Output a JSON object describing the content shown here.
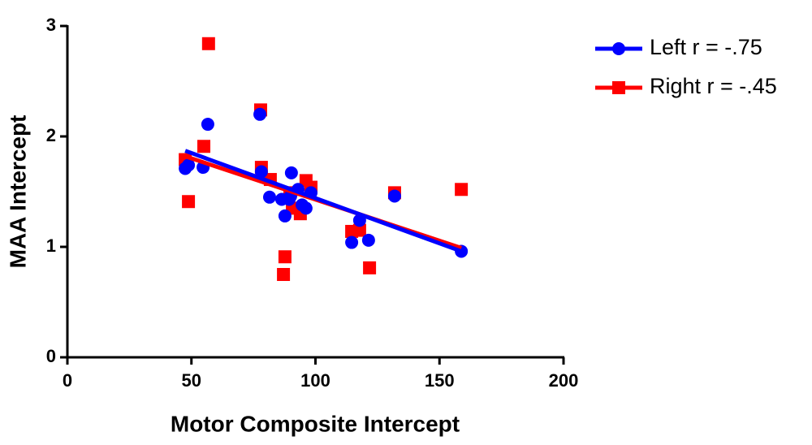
{
  "chart_data": {
    "type": "scatter",
    "x_label": "Motor Composite Intercept",
    "y_label": "MAA Intercept",
    "xlim": [
      0,
      200
    ],
    "xticks": [
      0,
      50,
      100,
      150,
      200
    ],
    "ylim": [
      0,
      3
    ],
    "yticks": [
      0,
      1,
      2,
      3
    ],
    "legend_position": "right",
    "series": [
      {
        "name": "Left r = -.75",
        "color": "#0000ff",
        "marker": "circle",
        "x": [
          47.5,
          48.8,
          54.7,
          56.6,
          77.6,
          78.2,
          81.5,
          86.4,
          87.7,
          89.4,
          90.3,
          90.0,
          93.0,
          94.6,
          96.2,
          98.2,
          114.6,
          117.8,
          121.4,
          131.9,
          158.8
        ],
        "values": [
          1.71,
          1.74,
          1.72,
          2.11,
          2.2,
          1.68,
          1.45,
          1.43,
          1.28,
          1.43,
          1.67,
          1.46,
          1.52,
          1.38,
          1.35,
          1.49,
          1.04,
          1.24,
          1.06,
          1.46,
          0.96
        ],
        "fit": {
          "x": [
            47.5,
            158.8
          ],
          "y": [
            1.87,
            0.96
          ]
        }
      },
      {
        "name": "Right r = -.45",
        "color": "#ff0000",
        "marker": "square",
        "x": [
          47.5,
          48.8,
          55.0,
          56.9,
          77.9,
          78.2,
          81.8,
          87.1,
          87.7,
          89.7,
          90.7,
          93.9,
          96.2,
          98.2,
          114.6,
          117.8,
          121.8,
          131.9,
          158.8
        ],
        "values": [
          1.79,
          1.41,
          1.91,
          2.84,
          2.24,
          1.72,
          1.61,
          0.75,
          0.91,
          1.49,
          1.35,
          1.3,
          1.6,
          1.54,
          1.14,
          1.15,
          0.81,
          1.49,
          1.52
        ],
        "fit": {
          "x": [
            47.5,
            158.8
          ],
          "y": [
            1.82,
            0.99
          ]
        }
      }
    ]
  }
}
